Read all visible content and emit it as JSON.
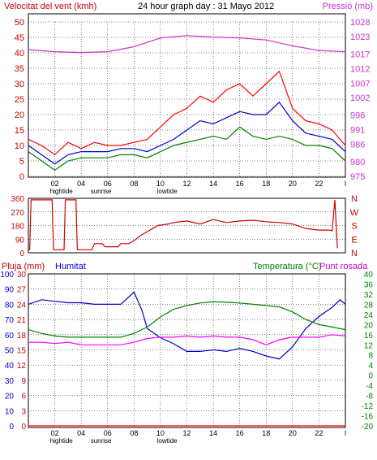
{
  "chart_data": [
    {
      "type": "line",
      "title": "24 hour graph day : 31 Mayo 2012",
      "left_label": "Velocitat del vent (kmh)",
      "right_label": "Pressió (mb)",
      "colors": {
        "left_label": "#cc0000",
        "right_label": "#cc33cc",
        "title": "#000000",
        "wind_gust": "#ff0000",
        "wind_avg": "#0000cc",
        "wind_speed": "#008000",
        "pressure": "#cc33cc"
      },
      "x_ticks": [
        "02",
        "04",
        "06",
        "08",
        "10",
        "12",
        "14",
        "16",
        "18",
        "20",
        "22",
        "l"
      ],
      "x_annotations": [
        "hightide",
        "sunrise",
        "lowtide"
      ],
      "ylim_left": [
        0,
        50
      ],
      "y_ticks_left": [
        0,
        5,
        10,
        15,
        20,
        25,
        30,
        35,
        40,
        45,
        50
      ],
      "ylim_right": [
        975,
        1028
      ],
      "y_ticks_right": [
        975,
        980,
        986,
        991,
        996,
        1002,
        1007,
        1012,
        1017,
        1023,
        1028
      ],
      "grid": true,
      "x_range": [
        0,
        24
      ],
      "series": [
        {
          "key": "wind_gust",
          "values": [
            [
              0,
              12
            ],
            [
              1,
              10
            ],
            [
              2,
              7
            ],
            [
              3,
              11
            ],
            [
              4,
              9
            ],
            [
              5,
              11
            ],
            [
              6,
              10
            ],
            [
              7,
              10
            ],
            [
              8,
              11
            ],
            [
              9,
              12
            ],
            [
              10,
              16
            ],
            [
              11,
              20
            ],
            [
              12,
              22
            ],
            [
              13,
              26
            ],
            [
              14,
              24
            ],
            [
              15,
              28
            ],
            [
              16,
              30
            ],
            [
              17,
              26
            ],
            [
              18,
              30
            ],
            [
              19,
              34
            ],
            [
              20,
              22
            ],
            [
              21,
              18
            ],
            [
              22,
              17
            ],
            [
              23,
              15
            ],
            [
              24,
              10
            ]
          ]
        },
        {
          "key": "wind_avg",
          "values": [
            [
              0,
              10
            ],
            [
              1,
              7
            ],
            [
              2,
              4
            ],
            [
              3,
              7
            ],
            [
              4,
              8
            ],
            [
              5,
              8
            ],
            [
              6,
              8
            ],
            [
              7,
              9
            ],
            [
              8,
              9
            ],
            [
              9,
              8
            ],
            [
              10,
              10
            ],
            [
              11,
              12
            ],
            [
              12,
              15
            ],
            [
              13,
              18
            ],
            [
              14,
              17
            ],
            [
              15,
              19
            ],
            [
              16,
              21
            ],
            [
              17,
              20
            ],
            [
              18,
              20
            ],
            [
              19,
              24
            ],
            [
              20,
              18
            ],
            [
              21,
              14
            ],
            [
              22,
              13
            ],
            [
              23,
              12
            ],
            [
              24,
              8
            ]
          ]
        },
        {
          "key": "wind_speed",
          "values": [
            [
              0,
              8
            ],
            [
              1,
              5
            ],
            [
              2,
              2
            ],
            [
              3,
              5
            ],
            [
              4,
              6
            ],
            [
              5,
              6
            ],
            [
              6,
              6
            ],
            [
              7,
              7
            ],
            [
              8,
              7
            ],
            [
              9,
              6
            ],
            [
              10,
              8
            ],
            [
              11,
              10
            ],
            [
              12,
              11
            ],
            [
              13,
              12
            ],
            [
              14,
              13
            ],
            [
              15,
              12
            ],
            [
              16,
              16
            ],
            [
              17,
              13
            ],
            [
              18,
              12
            ],
            [
              19,
              13
            ],
            [
              20,
              12
            ],
            [
              21,
              10
            ],
            [
              22,
              10
            ],
            [
              23,
              9
            ],
            [
              24,
              5
            ]
          ]
        },
        {
          "key": "pressure",
          "values": [
            [
              0,
              1018.5
            ],
            [
              2,
              1017.8
            ],
            [
              4,
              1017.5
            ],
            [
              6,
              1017.8
            ],
            [
              8,
              1019.5
            ],
            [
              10,
              1022.5
            ],
            [
              12,
              1023.3
            ],
            [
              14,
              1022.8
            ],
            [
              16,
              1022.5
            ],
            [
              18,
              1021.8
            ],
            [
              20,
              1019.8
            ],
            [
              22,
              1018.2
            ],
            [
              24,
              1017.8
            ]
          ]
        }
      ]
    },
    {
      "type": "line",
      "y_ticks_left": [
        0,
        90,
        180,
        270,
        360
      ],
      "ylim_left": [
        0,
        360
      ],
      "compass_labels": [
        "N",
        "W",
        "S",
        "E",
        "N"
      ],
      "colors": {
        "direction": "#cc0000",
        "compass": "#cc0000"
      },
      "x_range": [
        0,
        24
      ],
      "series": [
        {
          "key": "direction",
          "values": [
            [
              0,
              20
            ],
            [
              0.1,
              20
            ],
            [
              0.2,
              350
            ],
            [
              1.8,
              350
            ],
            [
              1.9,
              20
            ],
            [
              2.7,
              20
            ],
            [
              2.8,
              350
            ],
            [
              3.6,
              350
            ],
            [
              3.7,
              20
            ],
            [
              4.8,
              20
            ],
            [
              5,
              60
            ],
            [
              5.6,
              60
            ],
            [
              5.8,
              40
            ],
            [
              6.8,
              40
            ],
            [
              7,
              60
            ],
            [
              7.6,
              60
            ],
            [
              8,
              80
            ],
            [
              8.6,
              120
            ],
            [
              9.2,
              150
            ],
            [
              9.8,
              180
            ],
            [
              10.6,
              190
            ],
            [
              11,
              200
            ],
            [
              12,
              210
            ],
            [
              13,
              190
            ],
            [
              14,
              220
            ],
            [
              15,
              200
            ],
            [
              16,
              210
            ],
            [
              17,
              215
            ],
            [
              18,
              205
            ],
            [
              19,
              200
            ],
            [
              20,
              190
            ],
            [
              21,
              160
            ],
            [
              22,
              150
            ],
            [
              22.8,
              150
            ],
            [
              23,
              145
            ],
            [
              23.2,
              350
            ],
            [
              23.4,
              30
            ]
          ]
        }
      ]
    },
    {
      "type": "line",
      "left_label": "Pluja (mm)",
      "left2_label": "Humitat",
      "right_label_a": "Temperatura (°C)",
      "right_label_b": "Punt rosada",
      "colors": {
        "left_label": "#cc0000",
        "left2_label": "#0000cc",
        "right_label_a": "#008000",
        "right_label_b": "#cc00cc",
        "humidity": "#0000cc",
        "temperature": "#008000",
        "dewpoint": "#ff00ff",
        "rain": "#ff0000"
      },
      "x_ticks": [
        "02",
        "04",
        "06",
        "08",
        "10",
        "12",
        "14",
        "16",
        "18",
        "20",
        "22",
        "l"
      ],
      "x_annotations": [
        "hightide",
        "sunrise",
        "lowtide"
      ],
      "y_ticks_rain": [
        0,
        3,
        6,
        9,
        12,
        15,
        18,
        21,
        24,
        27,
        30
      ],
      "ylim_rain": [
        0,
        30
      ],
      "y_ticks_humidity": [
        0,
        10,
        20,
        30,
        40,
        50,
        60,
        70,
        80,
        90,
        100
      ],
      "ylim_humidity": [
        0,
        100
      ],
      "y_ticks_temp": [
        -20,
        -16,
        -12,
        -8,
        -4,
        0,
        4,
        8,
        12,
        16,
        20,
        24,
        28,
        32,
        36,
        40
      ],
      "ylim_temp": [
        -20,
        40
      ],
      "grid": true,
      "x_range": [
        0,
        24
      ],
      "series": [
        {
          "key": "humidity",
          "values": [
            [
              0,
              80
            ],
            [
              1,
              83
            ],
            [
              2,
              82
            ],
            [
              3,
              81
            ],
            [
              4,
              81
            ],
            [
              5,
              80
            ],
            [
              6,
              80
            ],
            [
              7,
              80
            ],
            [
              8,
              88
            ],
            [
              8.6,
              76
            ],
            [
              9,
              64
            ],
            [
              10,
              58
            ],
            [
              11,
              54
            ],
            [
              12,
              49
            ],
            [
              13,
              49
            ],
            [
              14,
              50
            ],
            [
              15,
              49
            ],
            [
              16,
              51
            ],
            [
              17,
              49
            ],
            [
              18,
              46
            ],
            [
              19,
              44
            ],
            [
              20,
              52
            ],
            [
              21,
              64
            ],
            [
              22,
              72
            ],
            [
              23,
              78
            ],
            [
              23.6,
              83
            ],
            [
              24,
              80
            ]
          ]
        },
        {
          "key": "temperature",
          "values": [
            [
              0,
              18
            ],
            [
              1,
              16.5
            ],
            [
              2,
              15.5
            ],
            [
              3,
              15
            ],
            [
              4,
              15
            ],
            [
              5,
              15
            ],
            [
              6,
              15
            ],
            [
              7,
              15
            ],
            [
              8,
              16.5
            ],
            [
              9,
              19
            ],
            [
              10,
              23
            ],
            [
              11,
              26
            ],
            [
              12,
              27.5
            ],
            [
              13,
              28.5
            ],
            [
              14,
              29
            ],
            [
              15,
              28.8
            ],
            [
              16,
              28.5
            ],
            [
              17,
              28
            ],
            [
              18,
              27.5
            ],
            [
              19,
              27
            ],
            [
              20,
              25
            ],
            [
              21,
              22
            ],
            [
              22,
              20
            ],
            [
              23,
              19
            ],
            [
              24,
              18
            ]
          ]
        },
        {
          "key": "dewpoint",
          "values": [
            [
              0,
              13
            ],
            [
              1,
              13
            ],
            [
              2,
              12.5
            ],
            [
              3,
              13
            ],
            [
              4,
              12
            ],
            [
              5,
              12
            ],
            [
              6,
              12
            ],
            [
              7,
              12
            ],
            [
              8,
              13
            ],
            [
              9,
              14.5
            ],
            [
              10,
              15
            ],
            [
              11,
              15
            ],
            [
              12,
              15.5
            ],
            [
              13,
              15
            ],
            [
              14,
              15.5
            ],
            [
              15,
              15
            ],
            [
              16,
              15
            ],
            [
              17,
              14
            ],
            [
              18,
              12
            ],
            [
              19,
              14
            ],
            [
              20,
              15
            ],
            [
              21,
              15
            ],
            [
              22,
              15
            ],
            [
              23,
              16
            ],
            [
              24,
              15.5
            ]
          ]
        },
        {
          "key": "rain",
          "values": [
            [
              0,
              0
            ],
            [
              24,
              0
            ]
          ]
        }
      ]
    }
  ]
}
